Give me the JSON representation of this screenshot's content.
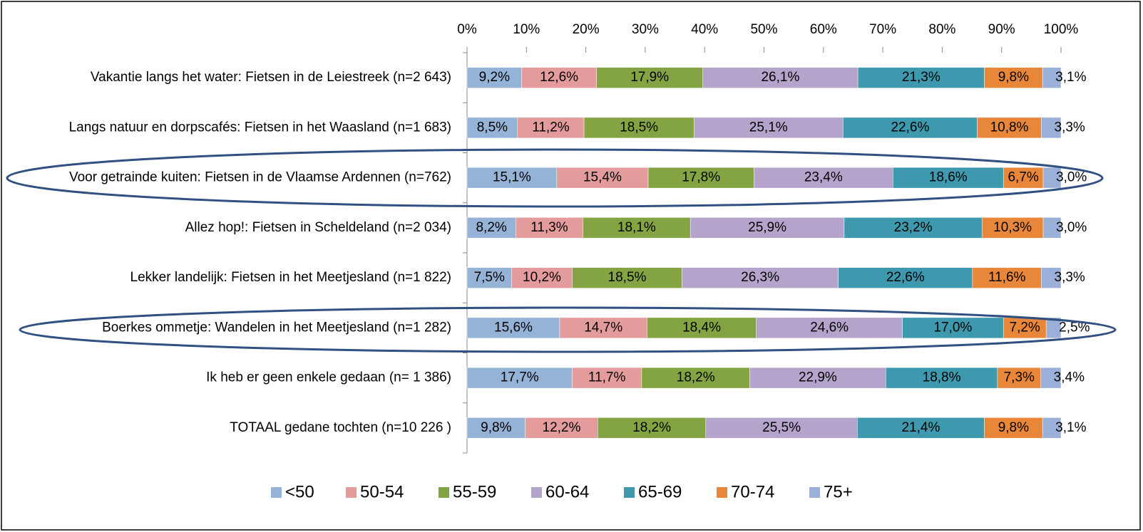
{
  "chart_data": {
    "type": "stacked-bar-horizontal",
    "categories": [
      "Vakantie langs het water: Fietsen in de Leiestreek (n=2 643)",
      "Langs natuur en dorpscafés: Fietsen in het Waasland (n=1 683)",
      "Voor getrainde kuiten: Fietsen in de Vlaamse Ardennen (n=762)",
      "Allez hop!: Fietsen in Scheldeland (n=2 034)",
      "Lekker landelijk: Fietsen in het Meetjesland (n=1 822)",
      "Boerkes ommetje: Wandelen in het Meetjesland (n=1 282)",
      "Ik heb er geen enkele gedaan (n= 1 386)",
      "TOTAAL gedane tochten (n=10 226 )"
    ],
    "series": [
      {
        "name": "<50",
        "color": "#95b3d7",
        "values": [
          9.2,
          8.5,
          15.1,
          8.2,
          7.5,
          15.6,
          17.7,
          9.8
        ],
        "value_labels": [
          "9,2%",
          "8,5%",
          "15,1%",
          "8,2%",
          "7,5%",
          "15,6%",
          "17,7%",
          "9,8%"
        ]
      },
      {
        "name": "50-54",
        "color": "#e39c9b",
        "values": [
          12.6,
          11.2,
          15.4,
          11.3,
          10.2,
          14.7,
          11.7,
          12.2
        ],
        "value_labels": [
          "12,6%",
          "11,2%",
          "15,4%",
          "11,3%",
          "10,2%",
          "14,7%",
          "11,7%",
          "12,2%"
        ]
      },
      {
        "name": "55-59",
        "color": "#84a443",
        "values": [
          17.9,
          18.5,
          17.8,
          18.1,
          18.5,
          18.4,
          18.2,
          18.2
        ],
        "value_labels": [
          "17,9%",
          "18,5%",
          "17,8%",
          "18,1%",
          "18,5%",
          "18,4%",
          "18,2%",
          "18,2%"
        ]
      },
      {
        "name": "60-64",
        "color": "#b4a4cc",
        "values": [
          26.1,
          25.1,
          23.4,
          25.9,
          26.3,
          24.6,
          22.9,
          25.5
        ],
        "value_labels": [
          "26,1%",
          "25,1%",
          "23,4%",
          "25,9%",
          "26,3%",
          "24,6%",
          "22,9%",
          "25,5%"
        ]
      },
      {
        "name": "65-69",
        "color": "#3e98ae",
        "values": [
          21.3,
          22.6,
          18.6,
          23.2,
          22.6,
          17.0,
          18.8,
          21.4
        ],
        "value_labels": [
          "21,3%",
          "22,6%",
          "18,6%",
          "23,2%",
          "22,6%",
          "17,0%",
          "18,8%",
          "21,4%"
        ]
      },
      {
        "name": "70-74",
        "color": "#e8873a",
        "values": [
          9.8,
          10.8,
          6.7,
          10.3,
          11.6,
          7.2,
          7.3,
          9.8
        ],
        "value_labels": [
          "9,8%",
          "10,8%",
          "6,7%",
          "10,3%",
          "11,6%",
          "7,2%",
          "7,3%",
          "9,8%"
        ]
      },
      {
        "name": "75+",
        "color": "#9bb0d8",
        "values": [
          3.1,
          3.3,
          3.0,
          3.0,
          3.3,
          2.5,
          3.4,
          3.1
        ],
        "value_labels": [
          "3,1%",
          "3,3%",
          "3,0%",
          "3,0%",
          "3,3%",
          "2,5%",
          "3,4%",
          "3,1%"
        ]
      }
    ],
    "xlim": [
      0,
      100
    ],
    "xticks": [
      {
        "value": 0,
        "label": "0%"
      },
      {
        "value": 10,
        "label": "10%"
      },
      {
        "value": 20,
        "label": "20%"
      },
      {
        "value": 30,
        "label": "30%"
      },
      {
        "value": 40,
        "label": "40%"
      },
      {
        "value": 50,
        "label": "50%"
      },
      {
        "value": 60,
        "label": "60%"
      },
      {
        "value": 70,
        "label": "70%"
      },
      {
        "value": 80,
        "label": "80%"
      },
      {
        "value": 90,
        "label": "90%"
      },
      {
        "value": 100,
        "label": "100%"
      }
    ],
    "legend": "bottom"
  }
}
